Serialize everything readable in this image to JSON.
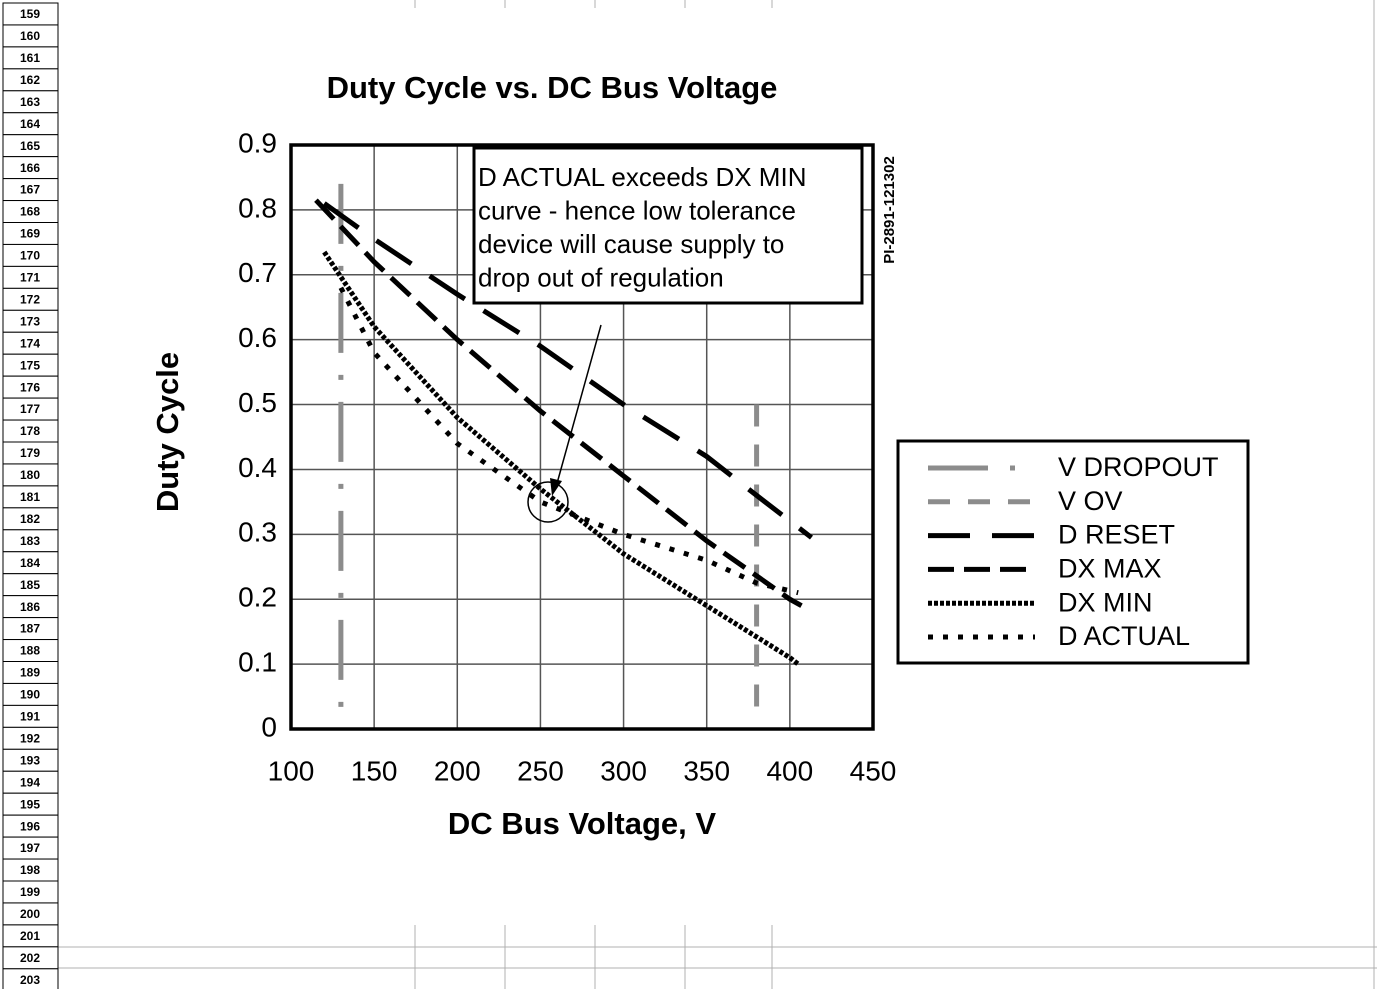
{
  "row_headers": [
    159,
    160,
    161,
    162,
    163,
    164,
    165,
    166,
    167,
    168,
    169,
    170,
    171,
    172,
    173,
    174,
    175,
    176,
    177,
    178,
    179,
    180,
    181,
    182,
    183,
    184,
    185,
    186,
    187,
    188,
    189,
    190,
    191,
    192,
    193,
    194,
    195,
    196,
    197,
    198,
    199,
    200,
    201,
    202,
    203
  ],
  "chart_data": {
    "type": "line",
    "title": "Duty Cycle vs. DC Bus Voltage",
    "xlabel": "DC Bus Voltage, V",
    "ylabel": "Duty Cycle",
    "xlim": [
      100,
      450
    ],
    "xticks": [
      100,
      150,
      200,
      250,
      300,
      350,
      400,
      450
    ],
    "ylim": [
      0,
      0.9
    ],
    "yticks": [
      0,
      0.1,
      0.2,
      0.3,
      0.4,
      0.5,
      0.6,
      0.7,
      0.8,
      0.9
    ],
    "grid": true,
    "legend": "right",
    "annotation": [
      "D ACTUAL exceeds DX MIN",
      "curve - hence low tolerance",
      "device will cause supply to",
      "drop out of regulation"
    ],
    "figure_id": "PI-2891-121302",
    "series": [
      {
        "name": "V DROPOUT",
        "color": "#8c8c8c",
        "dash": "60 22 5 22",
        "width": 5,
        "x": [
          130,
          130
        ],
        "values": [
          0.84,
          0.02
        ]
      },
      {
        "name": "V OV",
        "color": "#8c8c8c",
        "dash": "22 18",
        "width": 5,
        "x": [
          380,
          380
        ],
        "values": [
          0.5,
          0.03
        ]
      },
      {
        "name": "D RESET",
        "color": "#000000",
        "dash": "42 22",
        "width": 5,
        "x": [
          120,
          150,
          200,
          250,
          300,
          350,
          380,
          413
        ],
        "values": [
          0.81,
          0.755,
          0.67,
          0.59,
          0.5,
          0.42,
          0.36,
          0.295
        ]
      },
      {
        "name": "DX MAX",
        "color": "#000000",
        "dash": "26 10",
        "width": 5,
        "x": [
          115,
          150,
          200,
          250,
          300,
          350,
          400,
          407
        ],
        "values": [
          0.815,
          0.72,
          0.6,
          0.49,
          0.39,
          0.29,
          0.2,
          0.19
        ]
      },
      {
        "name": "DX MIN",
        "color": "#000000",
        "dash": "4 2",
        "width": 5,
        "x": [
          120,
          150,
          200,
          250,
          300,
          350,
          400,
          405
        ],
        "values": [
          0.735,
          0.62,
          0.48,
          0.37,
          0.27,
          0.19,
          0.11,
          0.1
        ]
      },
      {
        "name": "D ACTUAL",
        "color": "#000000",
        "dash": "5 10",
        "width": 5,
        "x": [
          130,
          150,
          200,
          250,
          300,
          350,
          380,
          405
        ],
        "values": [
          0.68,
          0.58,
          0.44,
          0.35,
          0.3,
          0.26,
          0.225,
          0.21
        ]
      }
    ]
  }
}
